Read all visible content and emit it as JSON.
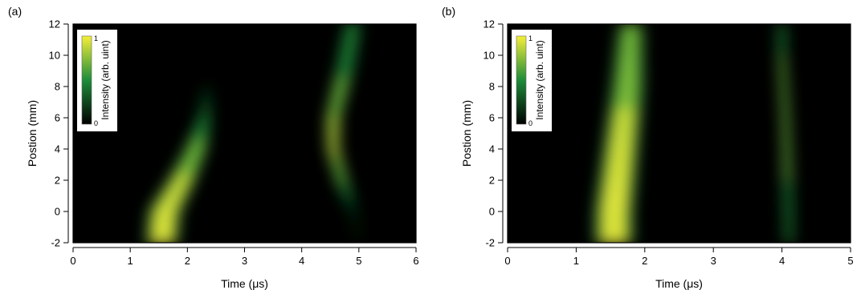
{
  "chart_data": [
    {
      "type": "heatmap",
      "panel_label": "(a)",
      "xlabel": "Time (μs)",
      "ylabel": "Postion (mm)",
      "xlim": [
        0,
        6
      ],
      "ylim": [
        -2,
        12
      ],
      "xticks": [
        "0",
        "1",
        "2",
        "3",
        "4",
        "5",
        "6"
      ],
      "yticks": [
        "-2",
        "0",
        "2",
        "4",
        "6",
        "8",
        "10",
        "12"
      ],
      "colorbar": {
        "label": "Intensity (arb. uint)",
        "max_label": "1",
        "min_label": "0",
        "colors": [
          "#000000",
          "#1e8c3a",
          "#f5ef3a"
        ]
      },
      "features": [
        {
          "name": "first pulse",
          "path": [
            [
              1.55,
              -2
            ],
            [
              1.6,
              0
            ],
            [
              1.9,
              2
            ],
            [
              2.15,
              4
            ],
            [
              2.3,
              6
            ],
            [
              2.35,
              8
            ]
          ],
          "width": [
            0.55,
            0.55,
            0.45,
            0.35,
            0.2,
            0.08
          ],
          "peak": [
            1.0,
            0.95,
            0.8,
            0.6,
            0.3,
            0.1
          ]
        },
        {
          "name": "second pulse",
          "path": [
            [
              4.9,
              12
            ],
            [
              4.75,
              9
            ],
            [
              4.55,
              6
            ],
            [
              4.55,
              4
            ],
            [
              4.7,
              2
            ],
            [
              4.9,
              0
            ],
            [
              5.0,
              -2
            ]
          ],
          "width": [
            0.25,
            0.28,
            0.22,
            0.18,
            0.18,
            0.12,
            0.1
          ],
          "peak": [
            0.45,
            0.45,
            0.75,
            0.85,
            0.55,
            0.08,
            0.03
          ]
        }
      ]
    },
    {
      "type": "heatmap",
      "panel_label": "(b)",
      "xlabel": "Time (μs)",
      "ylabel": "Postion (mm)",
      "xlim": [
        0,
        5
      ],
      "ylim": [
        -2,
        12
      ],
      "xticks": [
        "0",
        "1",
        "2",
        "3",
        "4",
        "5"
      ],
      "yticks": [
        "-2",
        "0",
        "2",
        "4",
        "6",
        "8",
        "10",
        "12"
      ],
      "colorbar": {
        "label": "Intensity (arb. uint)",
        "max_label": "1",
        "min_label": "0",
        "colors": [
          "#000000",
          "#1e8c3a",
          "#f5ef3a"
        ]
      },
      "features": [
        {
          "name": "first pulse",
          "path": [
            [
              1.55,
              -2
            ],
            [
              1.55,
              0
            ],
            [
              1.65,
              4
            ],
            [
              1.75,
              8
            ],
            [
              1.8,
              12
            ]
          ],
          "width": [
            0.55,
            0.55,
            0.5,
            0.45,
            0.35
          ],
          "peak": [
            1.0,
            0.95,
            0.85,
            0.7,
            0.55
          ]
        },
        {
          "name": "second pulse",
          "path": [
            [
              4.1,
              -2
            ],
            [
              4.08,
              2
            ],
            [
              4.05,
              6
            ],
            [
              4.0,
              10
            ],
            [
              4.0,
              12
            ]
          ],
          "width": [
            0.12,
            0.12,
            0.1,
            0.1,
            0.1
          ],
          "peak": [
            0.35,
            0.5,
            0.65,
            0.5,
            0.45
          ]
        }
      ]
    }
  ]
}
